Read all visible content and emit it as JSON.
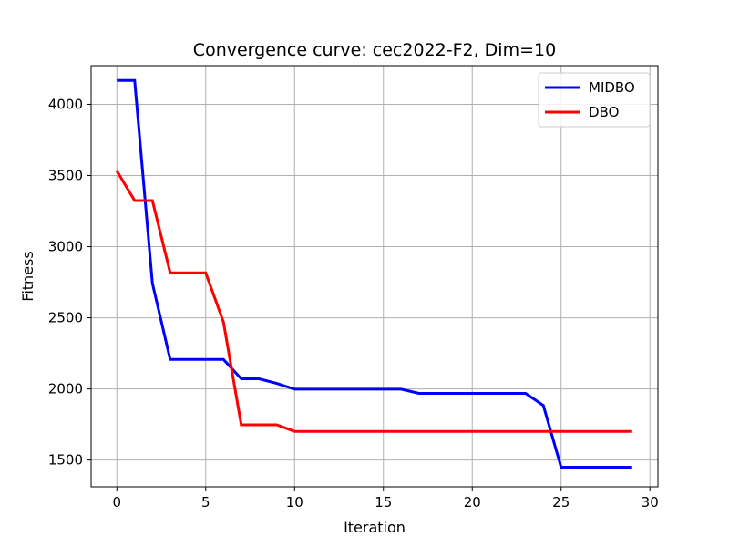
{
  "chart_data": {
    "type": "line",
    "title": "Convergence curve:  cec2022-F2, Dim=10",
    "xlabel": "Iteration",
    "ylabel": "Fitness",
    "xlim": [
      -1.45,
      30.45
    ],
    "ylim": [
      1312,
      4272
    ],
    "xticks": [
      0,
      5,
      10,
      15,
      20,
      25,
      30
    ],
    "yticks": [
      1500,
      2000,
      2500,
      3000,
      3500,
      4000
    ],
    "grid": true,
    "legend_position": "top-right",
    "x": [
      0,
      1,
      2,
      3,
      4,
      5,
      6,
      7,
      8,
      9,
      10,
      11,
      12,
      13,
      14,
      15,
      16,
      17,
      18,
      19,
      20,
      21,
      22,
      23,
      24,
      25,
      26,
      27,
      28,
      29
    ],
    "series": [
      {
        "name": "MIDBO",
        "color": "#0000ff",
        "values": [
          4168,
          4168,
          2742,
          2207,
          2207,
          2207,
          2207,
          2071,
          2071,
          2039,
          1998,
          1998,
          1998,
          1998,
          1998,
          1998,
          1998,
          1969,
          1969,
          1969,
          1969,
          1969,
          1969,
          1969,
          1884,
          1450,
          1450,
          1450,
          1450,
          1450
        ]
      },
      {
        "name": "DBO",
        "color": "#ff0000",
        "values": [
          3532,
          3324,
          3324,
          2816,
          2816,
          2816,
          2469,
          1748,
          1748,
          1748,
          1701,
          1701,
          1701,
          1701,
          1701,
          1701,
          1701,
          1701,
          1701,
          1701,
          1701,
          1701,
          1701,
          1701,
          1701,
          1701,
          1701,
          1701,
          1701,
          1701
        ]
      }
    ]
  }
}
